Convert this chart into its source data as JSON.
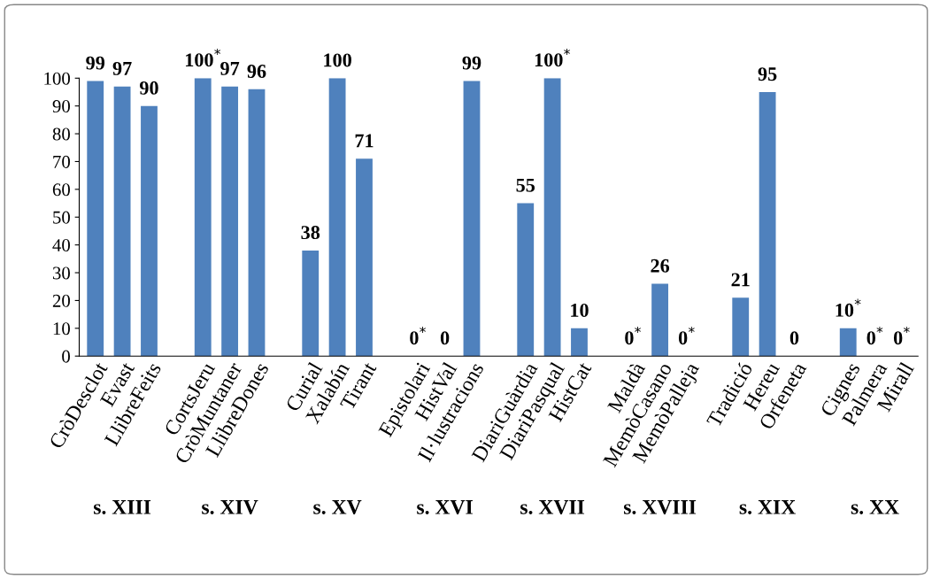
{
  "chart_data": {
    "type": "bar",
    "color": "#4f81bd",
    "categories": [
      "CròDesclot",
      "Evast",
      "LlibreFeits",
      null,
      "CortsJeru",
      "CròMuntaner",
      "LlibreDones",
      null,
      "Curial",
      "Xalabín",
      "Tirant",
      null,
      "Epistolari",
      "HistVal",
      "Il·lustracions",
      null,
      "DiariGuàrdia",
      "DiariPasqual",
      "HistCat",
      null,
      "Maldà",
      "MemòCasano",
      "MemòPalleja",
      null,
      "Tradició",
      "Hereu",
      "Orfeneta",
      null,
      "Cignes",
      "Palmera",
      "Mirall"
    ],
    "values": [
      99,
      97,
      90,
      null,
      100,
      97,
      96,
      null,
      38,
      100,
      71,
      null,
      0,
      0,
      99,
      null,
      55,
      100,
      10,
      null,
      0,
      26,
      0,
      null,
      21,
      95,
      0,
      null,
      10,
      0,
      0
    ],
    "value_labels": [
      "99",
      "97",
      "90",
      null,
      "100$^{*}$",
      "97",
      "96",
      null,
      "38",
      "100",
      "71",
      null,
      "0$^{*}$",
      "0",
      "99",
      null,
      "55",
      "100$^{*}$",
      "10",
      null,
      "0$^{*}$",
      "26",
      "0$^{*}$",
      null,
      "21",
      "95",
      "0",
      null,
      "10$^{*}$",
      "0$^{*}$",
      "0$^{*}$"
    ],
    "ylim": [
      0,
      100
    ],
    "yticks": [
      0,
      10,
      20,
      30,
      40,
      50,
      60,
      70,
      80,
      90,
      100
    ],
    "grid": false,
    "legend": false,
    "annotations": [
      "s. XIII",
      "s. XIV",
      "s. XV",
      "s. XVI",
      "s. XVII",
      "s. XVIII",
      "s. XIX",
      "s. XX"
    ]
  }
}
